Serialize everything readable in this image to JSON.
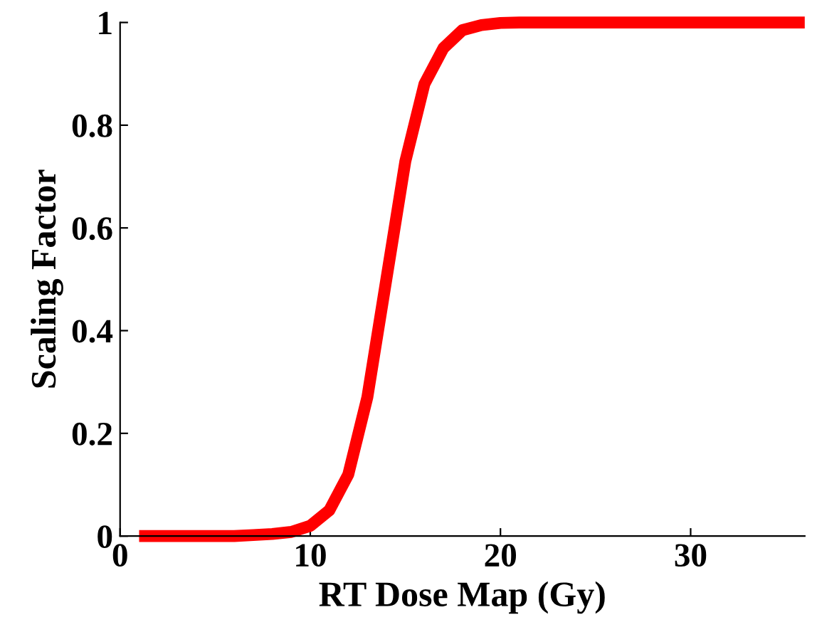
{
  "chart_data": {
    "type": "line",
    "xlabel": "RT Dose Map (Gy)",
    "ylabel": "Scaling Factor",
    "x": [
      1,
      2,
      3,
      4,
      5,
      6,
      7,
      8,
      9,
      10,
      11,
      12,
      13,
      14,
      15,
      16,
      17,
      18,
      19,
      20,
      21,
      22,
      25,
      30,
      36
    ],
    "series": [
      {
        "color": "#ff0000",
        "values": [
          0,
          0,
          0,
          0,
          0,
          0,
          0.002,
          0.004,
          0.008,
          0.02,
          0.05,
          0.12,
          0.27,
          0.5,
          0.73,
          0.88,
          0.95,
          0.985,
          0.995,
          0.999,
          1,
          1,
          1,
          1,
          1
        ]
      }
    ],
    "xlim": [
      0,
      36
    ],
    "ylim": [
      0,
      1
    ],
    "xticks": [
      0,
      10,
      20,
      30
    ],
    "yticks": [
      0,
      0.2,
      0.4,
      0.6,
      0.8,
      1
    ],
    "grid": false,
    "legend": false,
    "marker": "none",
    "line_style": "solid"
  }
}
